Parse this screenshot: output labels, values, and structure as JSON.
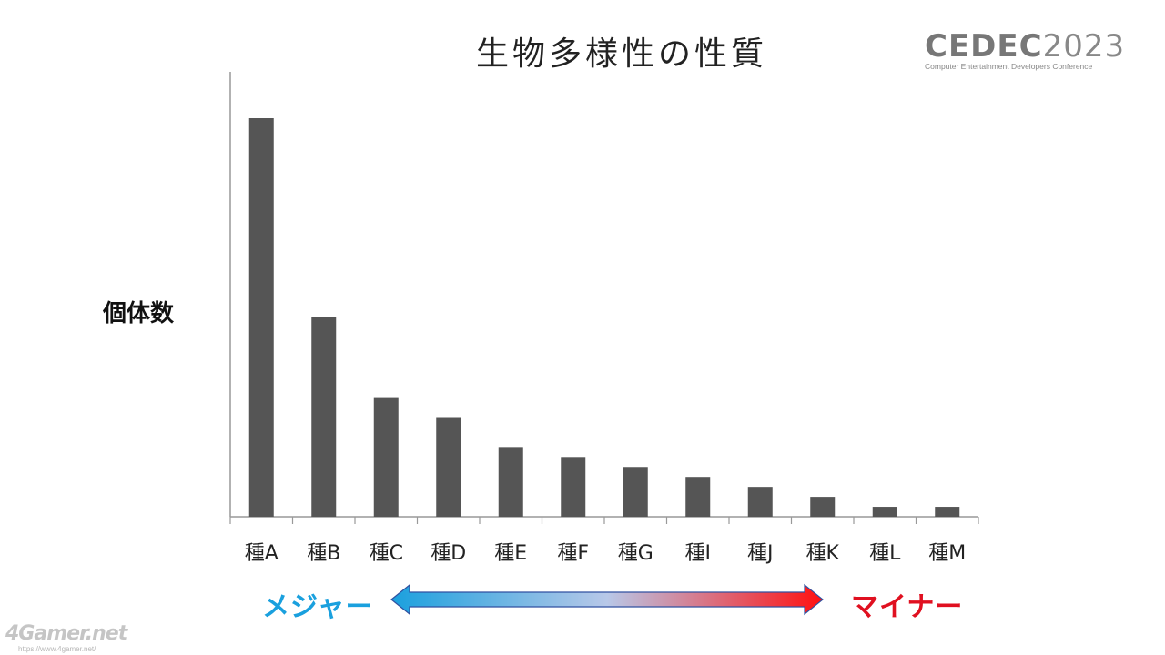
{
  "slide": {
    "title": "生物多様性の性質",
    "ylabel": "個体数",
    "major_label": "メジャー",
    "minor_label": "マイナー"
  },
  "logo": {
    "main_bold": "CEDEC",
    "main_thin": "2023",
    "sub": "Computer Entertainment Developers Conference"
  },
  "watermark": {
    "brand": "4Gamer.net",
    "url": "https://www.4gamer.net/"
  },
  "colors": {
    "bar": "#555555",
    "axis": "#999999",
    "arrow_left": "#1aa0de",
    "arrow_mid": "#b8c8e8",
    "arrow_right": "#ff1010",
    "major": "#1aa0de",
    "minor": "#e01020"
  },
  "chart_data": {
    "type": "bar",
    "categories": [
      "種A",
      "種B",
      "種C",
      "種D",
      "種E",
      "種F",
      "種G",
      "種I",
      "種J",
      "種K",
      "種L",
      "種M"
    ],
    "values": [
      100,
      50,
      30,
      25,
      17.5,
      15,
      12.5,
      10,
      7.5,
      5,
      2.5,
      2.5
    ],
    "ylabel": "個体数",
    "ylim": [
      0,
      105
    ],
    "grid": false,
    "legend": "none"
  }
}
